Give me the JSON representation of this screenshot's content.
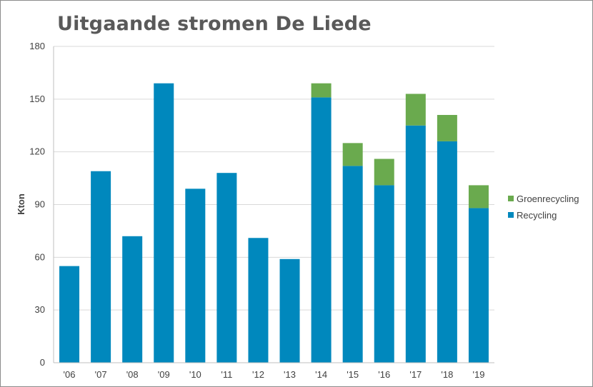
{
  "chart_data": {
    "type": "bar",
    "stacked": true,
    "title": "Uitgaande stromen De Liede",
    "ylabel": "Kton",
    "xlabel": "",
    "ylim": [
      0,
      180
    ],
    "yticks": [
      "0",
      "30",
      "60",
      "90",
      "120",
      "150",
      "180"
    ],
    "grid": true,
    "legend_position": "right",
    "categories": [
      "'06",
      "'07",
      "'08",
      "'09",
      "'10",
      "'11",
      "'12",
      "'13",
      "'14",
      "'15",
      "'16",
      "'17",
      "'18",
      "'19"
    ],
    "series": [
      {
        "name": "Recycling",
        "color": "#0088BD",
        "values": [
          55,
          109,
          72,
          159,
          99,
          108,
          71,
          59,
          151,
          112,
          101,
          135,
          126,
          88
        ]
      },
      {
        "name": "Groenrecycling",
        "color": "#6AAA4E",
        "values": [
          0,
          0,
          0,
          0,
          0,
          0,
          0,
          0,
          8,
          13,
          15,
          18,
          15,
          13
        ]
      }
    ],
    "legend": [
      "Groenrecycling",
      "Recycling"
    ]
  }
}
